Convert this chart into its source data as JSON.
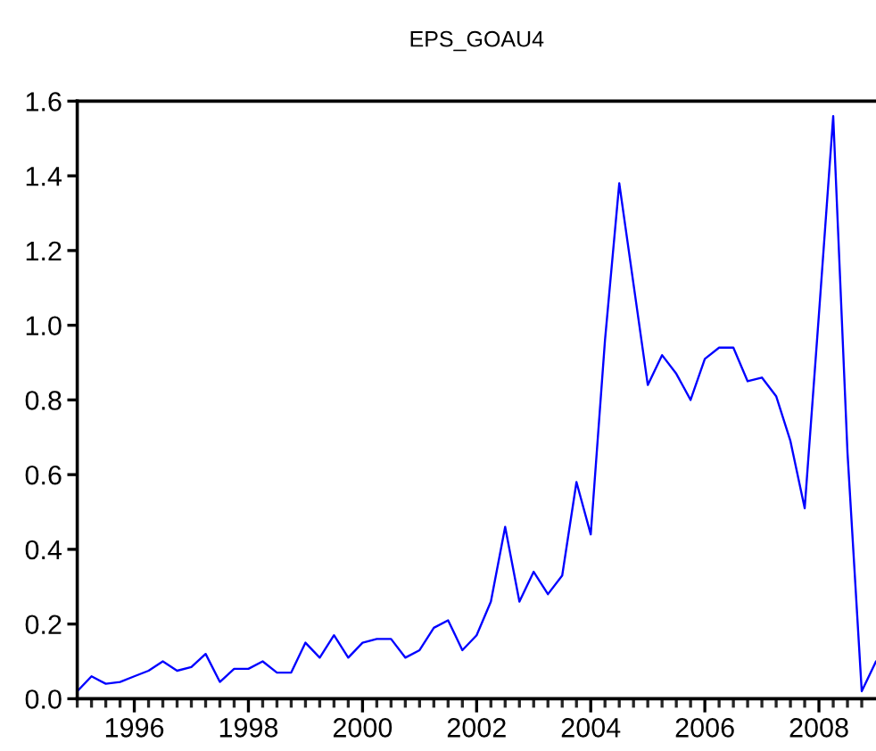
{
  "chart_data": {
    "type": "line",
    "title": "EPS_GOAU4",
    "x": [
      1995,
      1995.25,
      1995.5,
      1995.75,
      1996,
      1996.25,
      1996.5,
      1996.75,
      1997,
      1997.25,
      1997.5,
      1997.75,
      1998,
      1998.25,
      1998.5,
      1998.75,
      1999,
      1999.25,
      1999.5,
      1999.75,
      2000,
      2000.25,
      2000.5,
      2000.75,
      2001,
      2001.25,
      2001.5,
      2001.75,
      2002,
      2002.25,
      2002.5,
      2002.75,
      2003,
      2003.25,
      2003.5,
      2003.75,
      2004,
      2004.25,
      2004.5,
      2004.75,
      2005,
      2005.25,
      2005.5,
      2005.75,
      2006,
      2006.25,
      2006.5,
      2006.75,
      2007,
      2007.25,
      2007.5,
      2007.75,
      2008,
      2008.25,
      2008.5,
      2008.75,
      2009
    ],
    "series": [
      {
        "color": "#0000ff",
        "line_style": "solid",
        "values": [
          0.02,
          0.06,
          0.04,
          0.045,
          0.06,
          0.075,
          0.1,
          0.075,
          0.085,
          0.12,
          0.045,
          0.08,
          0.08,
          0.1,
          0.07,
          0.07,
          0.15,
          0.11,
          0.17,
          0.11,
          0.15,
          0.16,
          0.16,
          0.11,
          0.13,
          0.19,
          0.21,
          0.13,
          0.17,
          0.26,
          0.46,
          0.26,
          0.34,
          0.28,
          0.33,
          0.58,
          0.44,
          0.96,
          1.38,
          1.11,
          0.84,
          0.92,
          0.87,
          0.8,
          0.91,
          0.94,
          0.94,
          0.85,
          0.86,
          0.81,
          0.69,
          0.51,
          1.03,
          1.56,
          0.66,
          0.02,
          0.1
        ]
      }
    ],
    "xlim": [
      1995,
      2009
    ],
    "xticks": [
      {
        "value": 1995,
        "label": null
      },
      {
        "value": 1995.25,
        "label": null
      },
      {
        "value": 1995.5,
        "label": null
      },
      {
        "value": 1995.75,
        "label": null
      },
      1996,
      {
        "value": 1996.25,
        "label": null
      },
      {
        "value": 1996.5,
        "label": null
      },
      {
        "value": 1996.75,
        "label": null
      },
      {
        "value": 1997,
        "label": null
      },
      {
        "value": 1997.25,
        "label": null
      },
      {
        "value": 1997.5,
        "label": null
      },
      {
        "value": 1997.75,
        "label": null
      },
      1998,
      {
        "value": 1998.25,
        "label": null
      },
      {
        "value": 1998.5,
        "label": null
      },
      {
        "value": 1998.75,
        "label": null
      },
      {
        "value": 1999,
        "label": null
      },
      {
        "value": 1999.25,
        "label": null
      },
      {
        "value": 1999.5,
        "label": null
      },
      {
        "value": 1999.75,
        "label": null
      },
      2000,
      {
        "value": 2000.25,
        "label": null
      },
      {
        "value": 2000.5,
        "label": null
      },
      {
        "value": 2000.75,
        "label": null
      },
      {
        "value": 2001,
        "label": null
      },
      {
        "value": 2001.25,
        "label": null
      },
      {
        "value": 2001.5,
        "label": null
      },
      {
        "value": 2001.75,
        "label": null
      },
      2002,
      {
        "value": 2002.25,
        "label": null
      },
      {
        "value": 2002.5,
        "label": null
      },
      {
        "value": 2002.75,
        "label": null
      },
      {
        "value": 2003,
        "label": null
      },
      {
        "value": 2003.25,
        "label": null
      },
      {
        "value": 2003.5,
        "label": null
      },
      {
        "value": 2003.75,
        "label": null
      },
      2004,
      {
        "value": 2004.25,
        "label": null
      },
      {
        "value": 2004.5,
        "label": null
      },
      {
        "value": 2004.75,
        "label": null
      },
      {
        "value": 2005,
        "label": null
      },
      {
        "value": 2005.25,
        "label": null
      },
      {
        "value": 2005.5,
        "label": null
      },
      {
        "value": 2005.75,
        "label": null
      },
      2006,
      {
        "value": 2006.25,
        "label": null
      },
      {
        "value": 2006.5,
        "label": null
      },
      {
        "value": 2006.75,
        "label": null
      },
      {
        "value": 2007,
        "label": null
      },
      {
        "value": 2007.25,
        "label": null
      },
      {
        "value": 2007.5,
        "label": null
      },
      {
        "value": 2007.75,
        "label": null
      },
      2008,
      {
        "value": 2008.25,
        "label": null
      },
      {
        "value": 2008.5,
        "label": null
      },
      {
        "value": 2008.75,
        "label": null
      }
    ],
    "ylim": [
      0,
      1.6
    ],
    "yticks": [
      {
        "value": 0,
        "label": "0.0"
      },
      {
        "value": 0.2,
        "label": "0.2"
      },
      {
        "value": 0.4,
        "label": "0.4"
      },
      {
        "value": 0.6,
        "label": "0.6"
      },
      {
        "value": 0.8,
        "label": "0.8"
      },
      {
        "value": 1.0,
        "label": "1.0"
      },
      {
        "value": 1.2,
        "label": "1.2"
      },
      {
        "value": 1.4,
        "label": "1.4"
      },
      {
        "value": 1.6,
        "label": "1.6"
      }
    ]
  }
}
